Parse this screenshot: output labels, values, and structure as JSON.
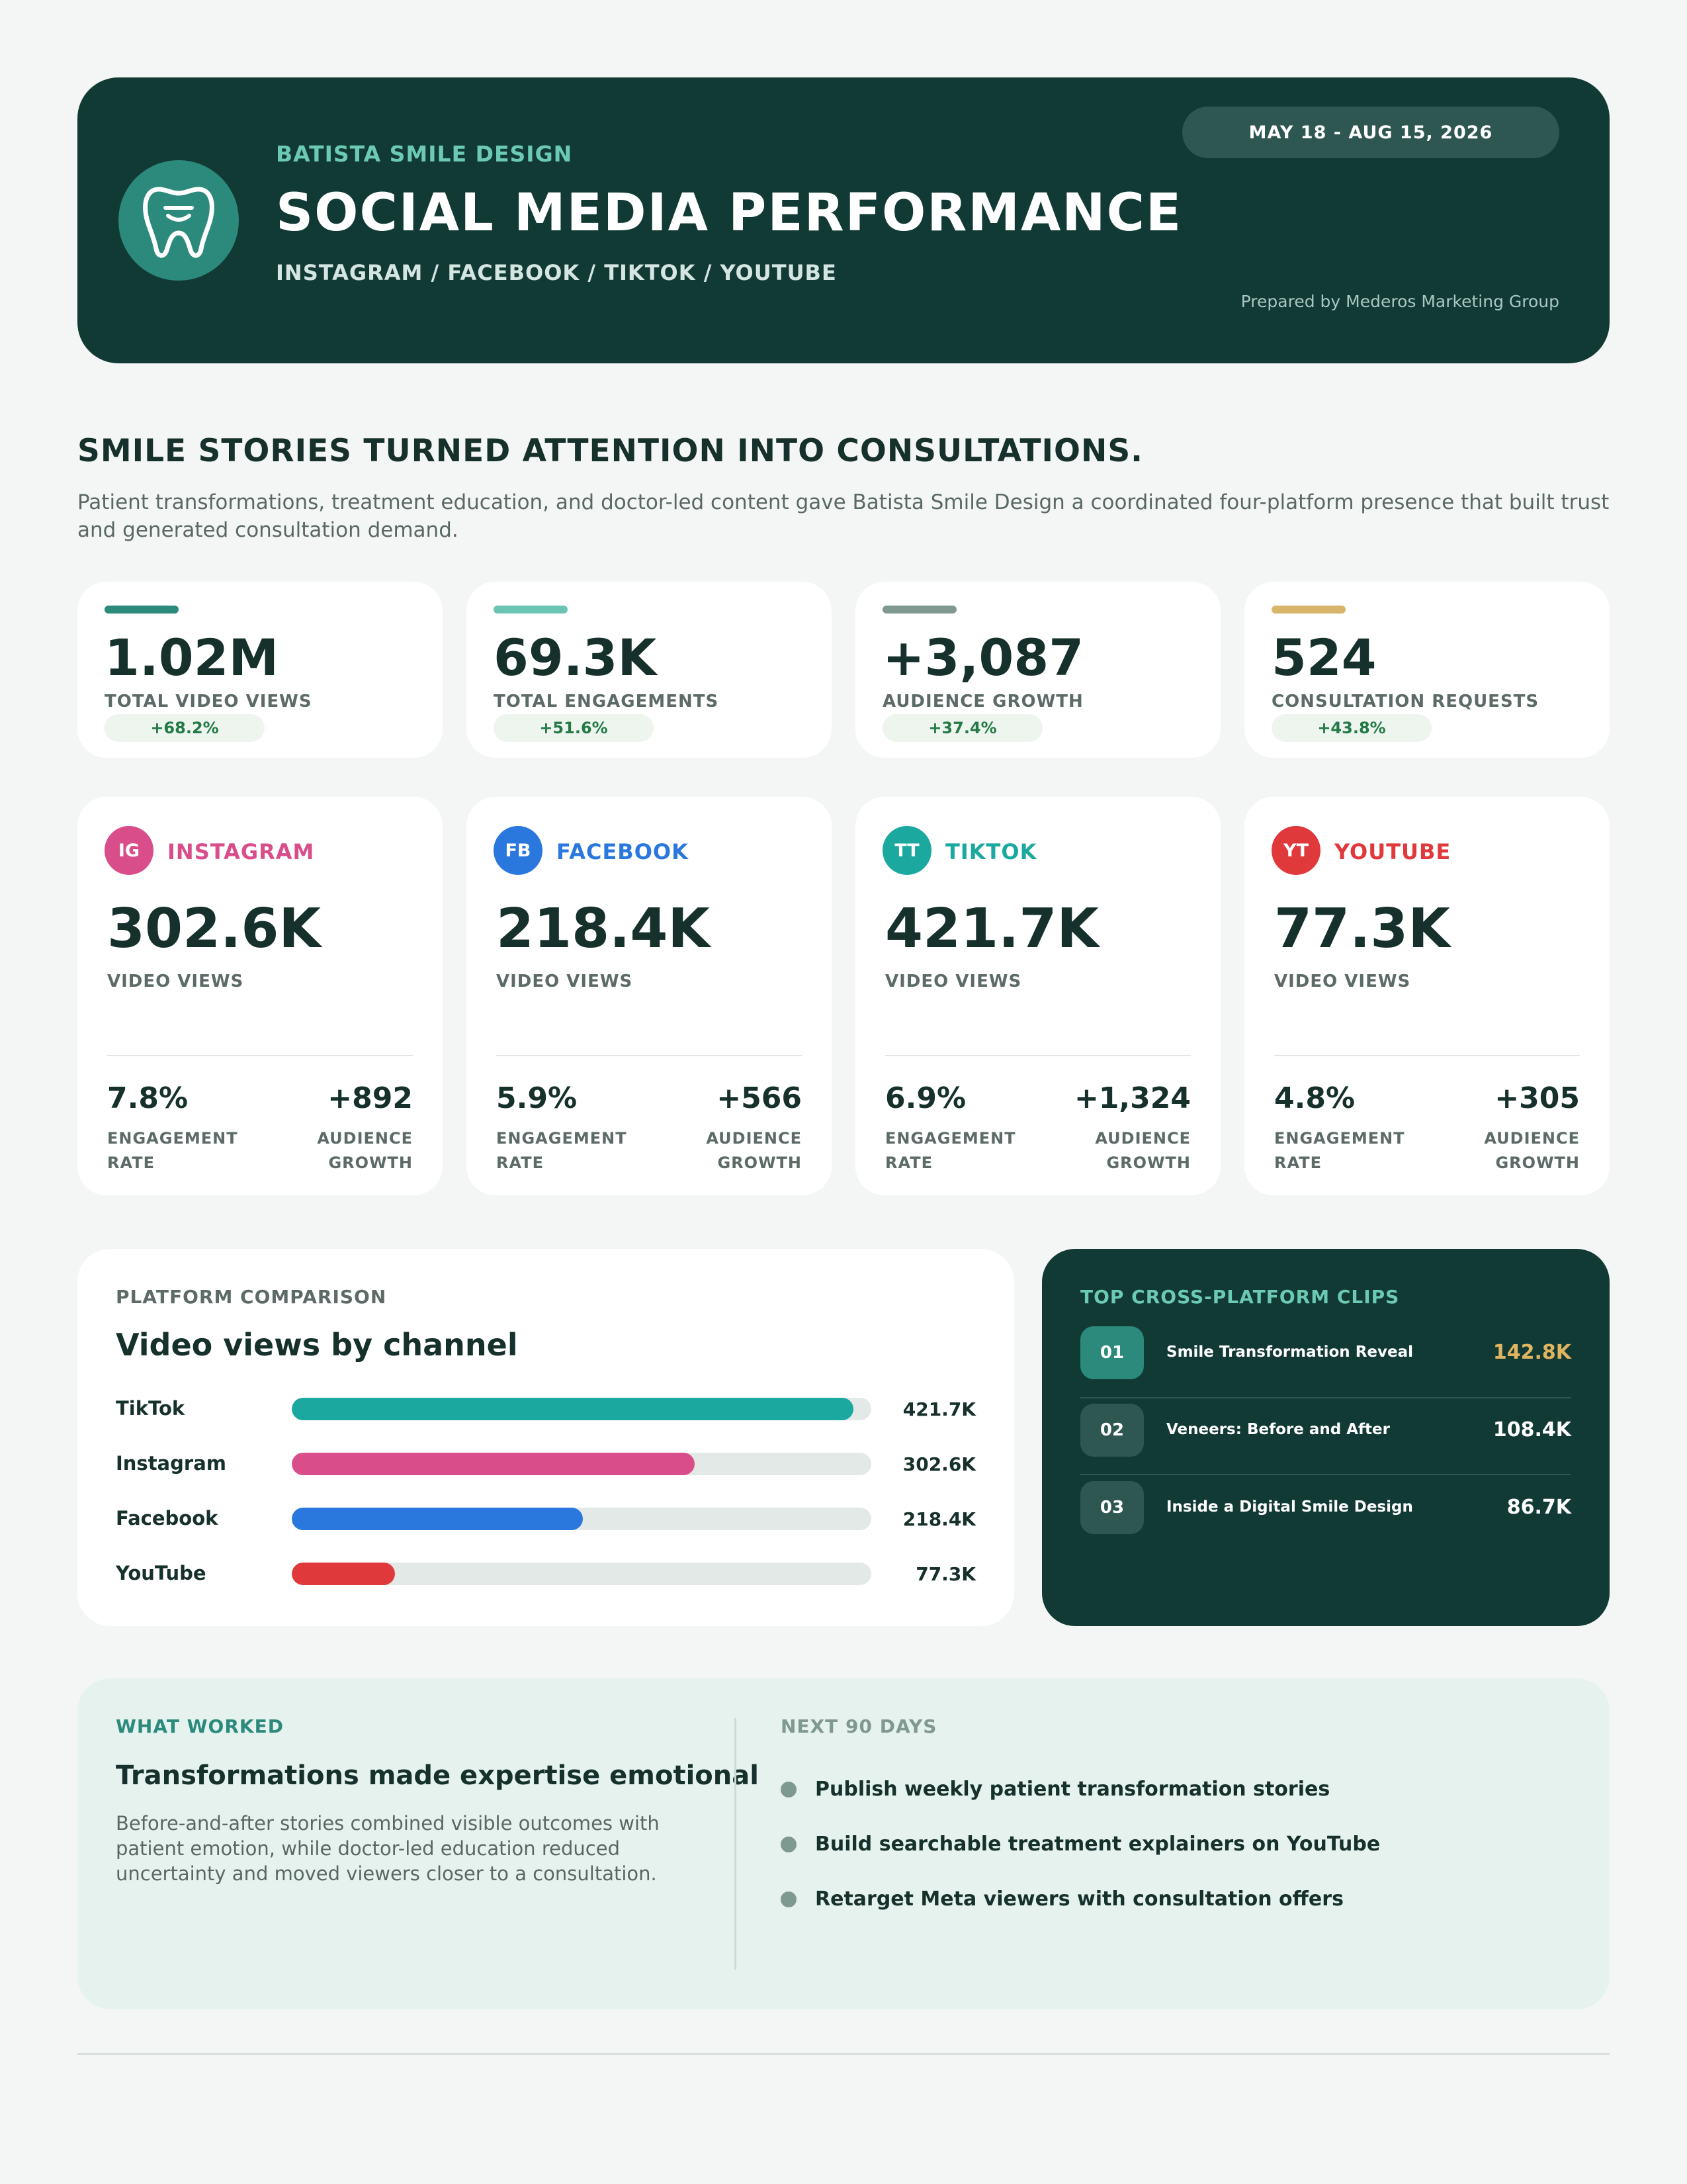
{
  "header": {
    "brand": "BATISTA SMILE DESIGN",
    "title": "SOCIAL MEDIA PERFORMANCE",
    "platforms": "INSTAGRAM / FACEBOOK / TIKTOK / YOUTUBE",
    "date_range": "MAY 18 - AUG 15, 2026",
    "prepared_by": "Prepared by Mederos Marketing Group",
    "logo_icon": "tooth-smile-icon"
  },
  "headline": "SMILE STORIES TURNED ATTENTION INTO CONSULTATIONS.",
  "intro": "Patient transformations, treatment education, and doctor-led content gave Batista Smile Design a coordinated four-platform presence that built trust and generated consultation demand.",
  "kpis": [
    {
      "value": "1.02M",
      "label": "TOTAL VIDEO VIEWS",
      "change": "+68.2%",
      "accent": "#2b8a7b"
    },
    {
      "value": "69.3K",
      "label": "TOTAL ENGAGEMENTS",
      "change": "+51.6%",
      "accent": "#6cc4b2"
    },
    {
      "value": "+3,087",
      "label": "AUDIENCE GROWTH",
      "change": "+37.4%",
      "accent": "#7f9990"
    },
    {
      "value": "524",
      "label": "CONSULTATION REQUESTS",
      "change": "+43.8%",
      "accent": "#d8b56a"
    }
  ],
  "platforms": [
    {
      "abbr": "IG",
      "name": "INSTAGRAM",
      "color": "#d94d8b",
      "views": "302.6K",
      "views_label": "VIDEO VIEWS",
      "engagement_rate": "7.8%",
      "audience_growth": "+892",
      "er_label": "ENGAGEMENT RATE",
      "ag_label": "AUDIENCE GROWTH"
    },
    {
      "abbr": "FB",
      "name": "FACEBOOK",
      "color": "#2a78dd",
      "views": "218.4K",
      "views_label": "VIDEO VIEWS",
      "engagement_rate": "5.9%",
      "audience_growth": "+566",
      "er_label": "ENGAGEMENT RATE",
      "ag_label": "AUDIENCE GROWTH"
    },
    {
      "abbr": "TT",
      "name": "TIKTOK",
      "color": "#1aa89f",
      "views": "421.7K",
      "views_label": "VIDEO VIEWS",
      "engagement_rate": "6.9%",
      "audience_growth": "+1,324",
      "er_label": "ENGAGEMENT RATE",
      "ag_label": "AUDIENCE GROWTH"
    },
    {
      "abbr": "YT",
      "name": "YOUTUBE",
      "color": "#e0393b",
      "views": "77.3K",
      "views_label": "VIDEO VIEWS",
      "engagement_rate": "4.8%",
      "audience_growth": "+305",
      "er_label": "ENGAGEMENT RATE",
      "ag_label": "AUDIENCE GROWTH"
    }
  ],
  "comparison": {
    "eyebrow": "PLATFORM COMPARISON",
    "title": "Video views by channel"
  },
  "chart_data": {
    "type": "bar",
    "orientation": "horizontal",
    "title": "Video views by channel",
    "categories": [
      "TikTok",
      "Instagram",
      "Facebook",
      "YouTube"
    ],
    "values": [
      421.7,
      302.6,
      218.4,
      77.3
    ],
    "value_labels": [
      "421.7K",
      "302.6K",
      "218.4K",
      "77.3K"
    ],
    "unit": "K",
    "colors": [
      "#1aa89f",
      "#d94d8b",
      "#2a78dd",
      "#e0393b"
    ],
    "xlim": [
      0,
      435
    ]
  },
  "clips": {
    "eyebrow": "TOP CROSS-PLATFORM CLIPS",
    "items": [
      {
        "rank": "01",
        "title": "Smile Transformation Reveal",
        "views": "142.8K"
      },
      {
        "rank": "02",
        "title": "Veneers: Before and After",
        "views": "108.4K"
      },
      {
        "rank": "03",
        "title": "Inside a Digital Smile Design",
        "views": "86.7K"
      }
    ]
  },
  "insights": {
    "what_worked_label": "WHAT WORKED",
    "what_worked_title": "Transformations made expertise emotional",
    "what_worked_body": "Before-and-after stories combined visible outcomes with patient emotion, while doctor-led education reduced uncertainty and moved viewers closer to a consultation.",
    "next_label": "NEXT 90 DAYS",
    "next_items": [
      "Publish weekly patient transformation stories",
      "Build searchable treatment explainers on YouTube",
      "Retarget Meta viewers with consultation offers"
    ]
  }
}
